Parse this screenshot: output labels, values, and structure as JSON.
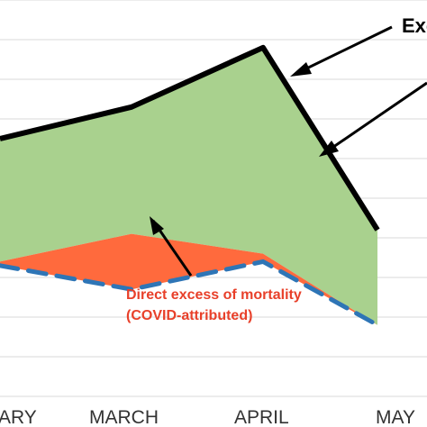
{
  "chart_data": {
    "type": "area",
    "categories": [
      "JANUARY",
      "MARCH",
      "APRIL",
      "MAY"
    ],
    "x": [
      0.0,
      1.0,
      2.0,
      2.87
    ],
    "total_excess_line": [
      6.5,
      7.3,
      8.8,
      4.2
    ],
    "direct_excess_boundary": [
      3.4,
      4.1,
      3.6,
      1.8
    ],
    "expected_baseline": [
      3.3,
      2.7,
      3.4,
      1.8
    ],
    "ylim": [
      0,
      10
    ],
    "grid": true,
    "colors": {
      "total_line": "#000000",
      "indirect_fill": "#a9d18e",
      "direct_fill": "#ff6a3d",
      "baseline_line": "#2e75b6",
      "direct_label": "#e8402a",
      "grid": "#d9d9d9"
    },
    "annotations": {
      "total_label": "Exc",
      "direct_label_line1": "Direct excess of mortality",
      "direct_label_line2": "(COVID-attributed)"
    },
    "tick_labels": [
      "ARY",
      "MARCH",
      "APRIL",
      "MAY"
    ]
  }
}
